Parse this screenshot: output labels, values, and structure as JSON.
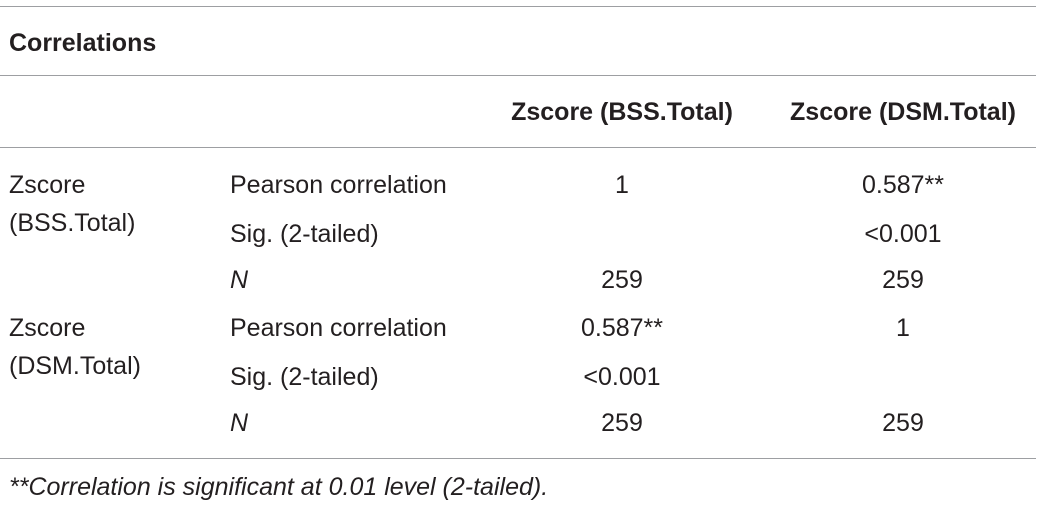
{
  "table": {
    "title": "Correlations",
    "columns": [
      "",
      "",
      "Zscore (BSS.Total)",
      "Zscore (DSM.Total)"
    ],
    "groups": [
      {
        "variable_line1": "Zscore",
        "variable_line2": "(BSS.Total)",
        "rows": [
          {
            "stat": "Pearson correlation",
            "col1": "1",
            "col2": "0.587**"
          },
          {
            "stat": "Sig. (2-tailed)",
            "col1": "",
            "col2": "<0.001"
          },
          {
            "stat": "N",
            "col1": "259",
            "col2": "259"
          }
        ]
      },
      {
        "variable_line1": "Zscore",
        "variable_line2": "(DSM.Total)",
        "rows": [
          {
            "stat": "Pearson correlation",
            "col1": "0.587**",
            "col2": "1"
          },
          {
            "stat": "Sig. (2-tailed)",
            "col1": "<0.001",
            "col2": ""
          },
          {
            "stat": "N",
            "col1": "259",
            "col2": "259"
          }
        ]
      }
    ],
    "footnote": "**Correlation is significant at 0.01 level (2-tailed)."
  }
}
